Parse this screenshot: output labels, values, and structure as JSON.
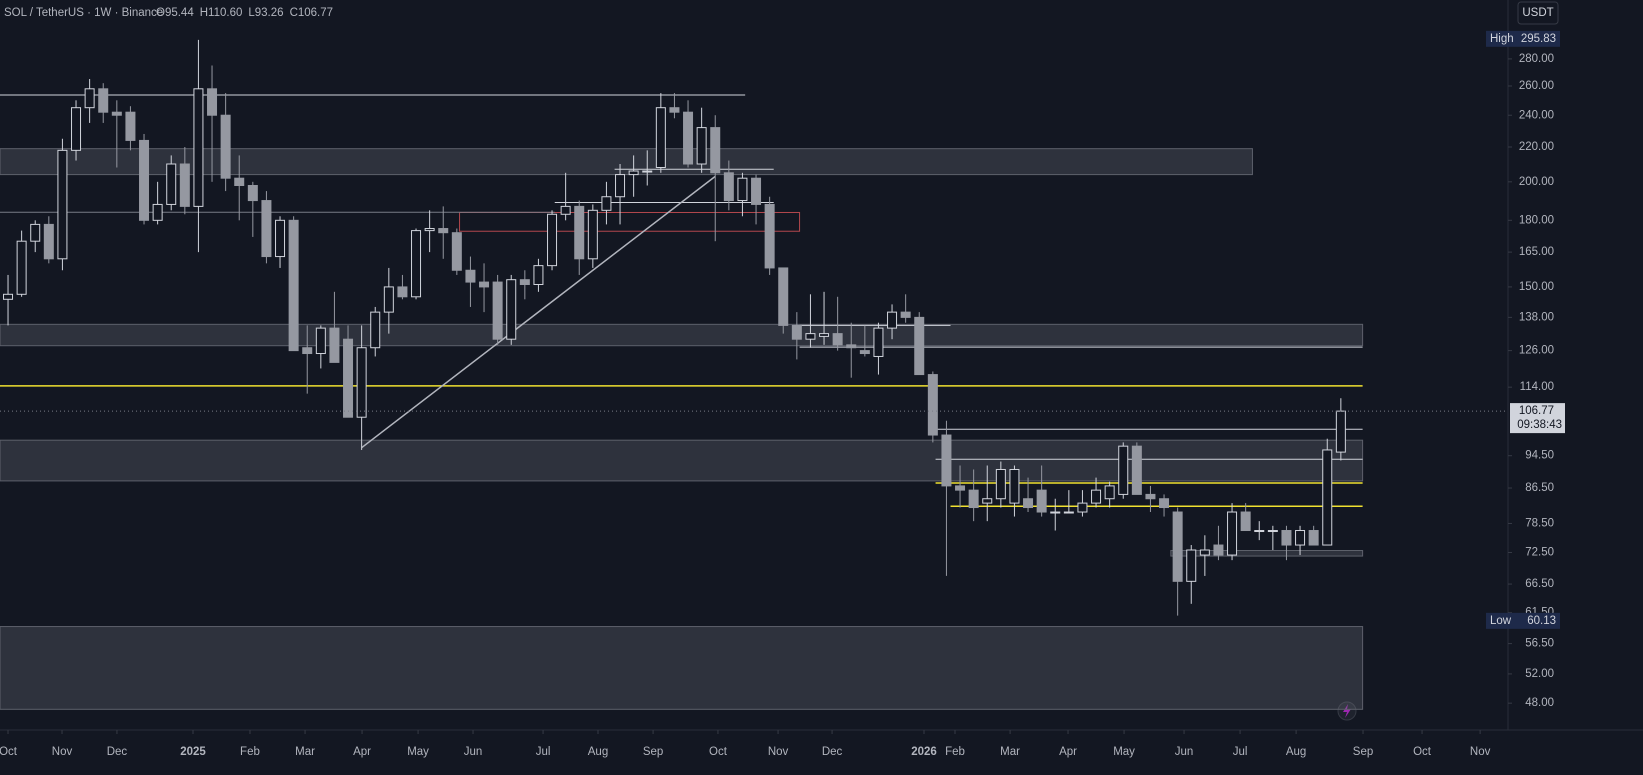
{
  "chart_data": {
    "type": "candlestick",
    "header": {
      "symbol": "SOL / TetherUS · 1W · Binance",
      "ohlc": [
        "O95.44",
        "H110.60",
        "L93.26",
        "C106.77"
      ]
    },
    "currency": "USDT",
    "log_scale": true,
    "up_color": "#d1d4dc",
    "down_color": "#9598a1",
    "open": [
      145,
      147,
      170,
      178,
      162,
      218,
      245,
      258,
      242,
      242,
      224,
      180,
      188,
      210,
      187,
      258,
      240,
      202,
      198,
      190,
      163,
      180,
      127,
      125,
      134,
      130,
      105,
      127,
      140,
      150,
      146,
      175,
      176,
      174,
      157,
      152,
      152,
      130,
      153,
      151,
      159,
      183,
      187,
      162,
      185,
      192,
      204,
      206,
      208,
      245,
      242,
      210,
      232,
      205,
      190,
      202,
      188,
      158,
      135,
      130,
      131,
      132,
      128,
      126,
      124,
      134,
      140,
      138,
      118,
      100,
      87,
      86,
      83,
      84,
      83,
      84,
      86,
      81,
      81,
      81,
      83,
      84,
      85,
      97,
      85,
      84,
      81,
      67,
      72,
      74,
      72,
      81,
      77,
      77,
      77,
      74,
      77,
      74,
      95.44
    ],
    "high": [
      155,
      175,
      180,
      182,
      225,
      250,
      265,
      262,
      250,
      246,
      228,
      200,
      215,
      220,
      295,
      275,
      255,
      215,
      200,
      195,
      182,
      182,
      135,
      135,
      148,
      135,
      135,
      142,
      158,
      155,
      176,
      185,
      187,
      176,
      163,
      160,
      155,
      155,
      157,
      162,
      185,
      205,
      190,
      188,
      200,
      210,
      215,
      218,
      255,
      255,
      250,
      245,
      240,
      212,
      205,
      204,
      192,
      158,
      140,
      147,
      148,
      146,
      136,
      135,
      136,
      143,
      147,
      140,
      119,
      104,
      92,
      91,
      92,
      93,
      92,
      89,
      92,
      84,
      86,
      86,
      89,
      88,
      98,
      98,
      87,
      85,
      82,
      74,
      76,
      78,
      83,
      83,
      79,
      78,
      78,
      78,
      78,
      99,
      110.6
    ],
    "low": [
      135,
      146,
      165,
      160,
      157,
      212,
      235,
      235,
      208,
      218,
      178,
      178,
      185,
      183,
      165,
      200,
      195,
      180,
      172,
      160,
      158,
      126,
      112,
      120,
      122,
      105,
      96,
      124,
      132,
      145,
      145,
      165,
      162,
      155,
      142,
      140,
      128,
      128,
      145,
      148,
      157,
      180,
      155,
      158,
      178,
      178,
      192,
      198,
      205,
      238,
      208,
      205,
      170,
      185,
      182,
      178,
      155,
      132,
      123,
      127,
      128,
      126,
      117,
      124,
      118,
      130,
      136,
      118,
      98,
      68,
      82,
      79,
      79,
      82,
      80,
      81,
      80,
      77,
      81,
      80,
      82,
      82,
      84,
      85,
      81,
      80,
      61,
      63,
      68,
      71,
      71,
      77,
      75,
      73,
      71,
      72,
      74,
      74,
      93.26
    ],
    "close": [
      147,
      170,
      178,
      162,
      218,
      245,
      258,
      242,
      240,
      224,
      180,
      188,
      210,
      187,
      258,
      240,
      202,
      198,
      190,
      163,
      180,
      126,
      125,
      134,
      122,
      105,
      127,
      140,
      150,
      146,
      175,
      176,
      174,
      157,
      152,
      150,
      130,
      153,
      151,
      159,
      183,
      187,
      162,
      185,
      192,
      204,
      206,
      206,
      245,
      242,
      210,
      232,
      205,
      190,
      202,
      188,
      158,
      135,
      130,
      132,
      132,
      128,
      127,
      125,
      134,
      140,
      138,
      118,
      100,
      87,
      86,
      82,
      84,
      91,
      91,
      82,
      81,
      81,
      81,
      83,
      86,
      87,
      97,
      85,
      84,
      82,
      67,
      73,
      73,
      72,
      81,
      77,
      77,
      77,
      74,
      77,
      74,
      96,
      106.77
    ],
    "xlim": [
      -0.59,
      110.29
    ],
    "xticks": [
      {
        "value": 0,
        "label": "Oct"
      },
      {
        "value": 3.97,
        "label": "Nov"
      },
      {
        "value": 8.01,
        "label": "Dec"
      },
      {
        "value": 13.6,
        "label": "2025"
      },
      {
        "value": 17.79,
        "label": "Feb"
      },
      {
        "value": 21.84,
        "label": "Mar"
      },
      {
        "value": 26.03,
        "label": "Apr"
      },
      {
        "value": 30.15,
        "label": "May"
      },
      {
        "value": 34.19,
        "label": "Jun"
      },
      {
        "value": 39.34,
        "label": "Jul"
      },
      {
        "value": 43.38,
        "label": "Aug"
      },
      {
        "value": 47.43,
        "label": "Sep"
      },
      {
        "value": 52.2,
        "label": "Oct"
      },
      {
        "value": 56.62,
        "label": "Nov"
      },
      {
        "value": 60.59,
        "label": "Dec"
      },
      {
        "value": 67.35,
        "label": "2026"
      },
      {
        "value": 69.63,
        "label": "Feb"
      },
      {
        "value": 73.68,
        "label": "Mar"
      },
      {
        "value": 77.94,
        "label": "Apr"
      },
      {
        "value": 82.06,
        "label": "May"
      },
      {
        "value": 86.47,
        "label": "Jun"
      },
      {
        "value": 90.59,
        "label": "Jul"
      },
      {
        "value": 94.71,
        "label": "Aug"
      },
      {
        "value": 99.63,
        "label": "Sep"
      },
      {
        "value": 103.97,
        "label": "Oct"
      },
      {
        "value": 108.24,
        "label": "Nov"
      }
    ],
    "ylim": [
      44.6,
      329
    ],
    "yticks": [
      {
        "value": 280,
        "label": "280.00"
      },
      {
        "value": 260,
        "label": "260.00"
      },
      {
        "value": 240,
        "label": "240.00"
      },
      {
        "value": 220,
        "label": "220.00"
      },
      {
        "value": 200,
        "label": "200.00"
      },
      {
        "value": 180,
        "label": "180.00"
      },
      {
        "value": 165,
        "label": "165.00"
      },
      {
        "value": 150,
        "label": "150.00"
      },
      {
        "value": 138,
        "label": "138.00"
      },
      {
        "value": 126,
        "label": "126.00"
      },
      {
        "value": 114,
        "label": "114.00"
      },
      {
        "value": 94.5,
        "label": "94.50"
      },
      {
        "value": 86.5,
        "label": "86.50"
      },
      {
        "value": 78.5,
        "label": "78.50"
      },
      {
        "value": 72.5,
        "label": "72.50"
      },
      {
        "value": 66.5,
        "label": "66.50"
      },
      {
        "value": 61.5,
        "label": "61.50"
      },
      {
        "value": 56.5,
        "label": "56.50"
      },
      {
        "value": 52,
        "label": "52.00"
      },
      {
        "value": 48,
        "label": "48.00"
      }
    ],
    "high_marker": {
      "label": "High",
      "value": 295.83
    },
    "low_marker": {
      "label": "Low",
      "value": 60.13
    },
    "last_price": 106.77,
    "countdown": "09:38:43",
    "zones": [
      {
        "low": 204,
        "high": 219,
        "end": 91.5
      },
      {
        "low": 127.7,
        "high": 135.4,
        "end": 99.6
      },
      {
        "low": 88.2,
        "high": 98.6,
        "end": 99.6
      },
      {
        "low": 47.2,
        "high": 59.2,
        "end": 99.6
      },
      {
        "low": 174.7,
        "high": 183.9,
        "start": 33.2,
        "end": 58.2,
        "color": "#b2474d"
      },
      {
        "low": 71.8,
        "high": 72.9,
        "start": 85.5,
        "end": 99.6
      }
    ],
    "levels": [
      {
        "price": 253.7,
        "end": 54.2,
        "color": "#d1d4dc"
      },
      {
        "price": 184,
        "end": 40.2,
        "color": "#787b86"
      },
      {
        "price": 114.4,
        "end": 99.6,
        "color": "#f0e130"
      },
      {
        "price": 127.2,
        "start": 58.2,
        "end": 99.6,
        "color": "#d1d4dc"
      },
      {
        "price": 135,
        "start": 58.2,
        "end": 69.3,
        "color": "#d1d4dc"
      },
      {
        "price": 207,
        "start": 44.6,
        "end": 56.3,
        "color": "#d1d4dc"
      },
      {
        "price": 189,
        "start": 40.2,
        "end": 56.3,
        "color": "#d1d4dc"
      },
      {
        "price": 101.6,
        "start": 68.2,
        "end": 99.6,
        "color": "#d1d4dc"
      },
      {
        "price": 93.6,
        "start": 68.2,
        "end": 99.6,
        "color": "#d1d4dc"
      },
      {
        "price": 87.7,
        "start": 68.2,
        "end": 99.6,
        "color": "#f0e130"
      },
      {
        "price": 82.3,
        "start": 69.3,
        "end": 99.6,
        "color": "#f0e130"
      }
    ],
    "trendline": {
      "from": [
        26,
        96.6
      ],
      "to": [
        52,
        203
      ]
    }
  }
}
